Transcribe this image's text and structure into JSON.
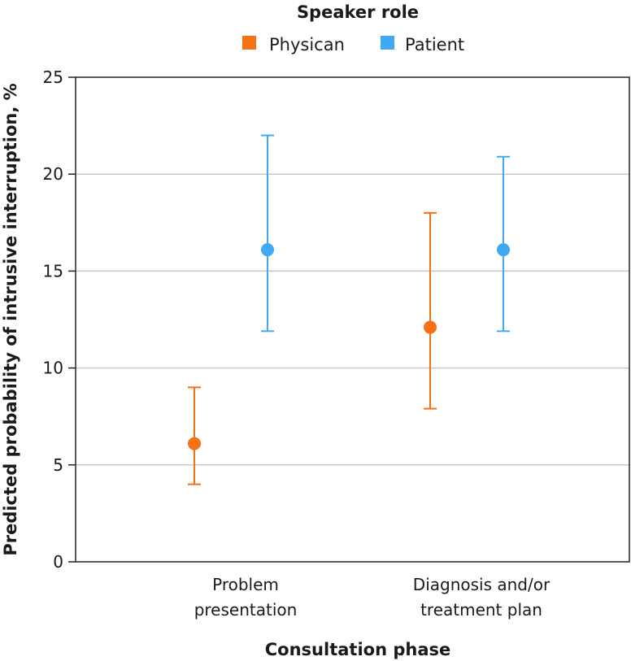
{
  "chart_data": {
    "type": "scatter",
    "title": "",
    "legend": {
      "title": "Speaker role",
      "placement": "top-center",
      "entries": [
        {
          "name": "Physican",
          "color": "#f47214"
        },
        {
          "name": "Patient",
          "color": "#3fa9f5"
        }
      ]
    },
    "xlabel": "Consultation phase",
    "ylabel": "Predicted probability of intrusive interruption, %",
    "ylim": [
      0,
      25
    ],
    "yticks": [
      0,
      5,
      10,
      15,
      20,
      25
    ],
    "grid": true,
    "categories": [
      {
        "line1": "Problem",
        "line2": "presentation"
      },
      {
        "line1": "Diagnosis and/or",
        "line2": "treatment plan"
      }
    ],
    "series": [
      {
        "name": "Physican",
        "color": "#f47214",
        "values": [
          6.1,
          12.1
        ],
        "lower": [
          4.0,
          7.9
        ],
        "upper": [
          9.0,
          18.0
        ]
      },
      {
        "name": "Patient",
        "color": "#3fa9f5",
        "values": [
          16.1,
          16.1
        ],
        "lower": [
          11.9,
          11.9
        ],
        "upper": [
          22.0,
          20.9
        ]
      }
    ]
  }
}
